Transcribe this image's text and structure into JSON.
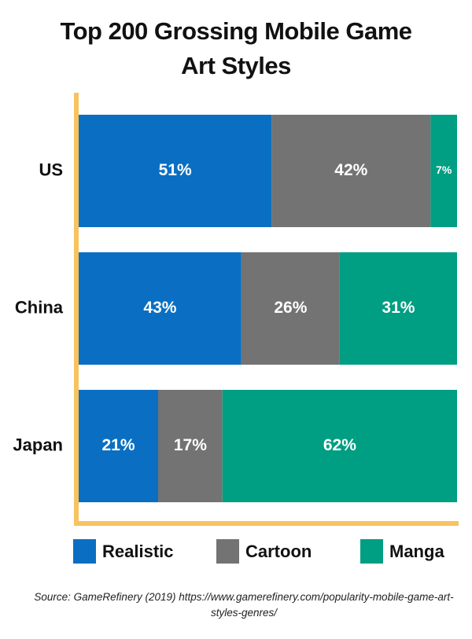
{
  "chart_data": {
    "type": "stacked-bar-horizontal",
    "title": "Top 200 Grossing Mobile Game Art Styles",
    "categories": [
      "US",
      "China",
      "Japan"
    ],
    "series": [
      {
        "name": "Realistic",
        "color": "#0a6fc2",
        "values": [
          51,
          43,
          21
        ],
        "value_labels": [
          "51%",
          "43%",
          "21%"
        ]
      },
      {
        "name": "Cartoon",
        "color": "#737373",
        "values": [
          42,
          26,
          17
        ],
        "value_labels": [
          "42%",
          "26%",
          "17%"
        ]
      },
      {
        "name": "Manga",
        "color": "#009e82",
        "values": [
          7,
          31,
          62
        ],
        "value_labels": [
          "7%",
          "31%",
          "62%"
        ]
      }
    ],
    "xlim": [
      0,
      100
    ],
    "axis_color": "#f7c35f",
    "source": "Source: GameRefinery (2019) https://www.gamerefinery.com/popularity-mobile-game-art-styles-genres/"
  }
}
